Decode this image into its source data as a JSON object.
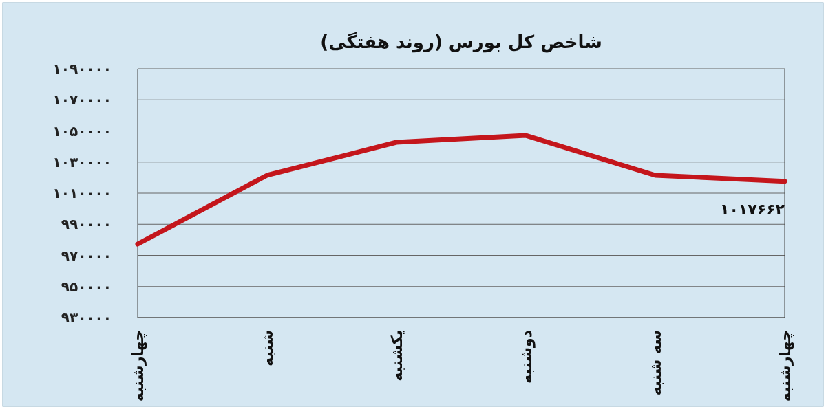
{
  "chart_data": {
    "type": "line",
    "title": "شاخص کل بورس (روند هفتگی)",
    "categories": [
      "چهارشنبه",
      "شنبه",
      "یکشنبه",
      "دوشنبه",
      "سه شنبه",
      "چهارشنبه"
    ],
    "series": [
      {
        "color": "#c4161c",
        "values": [
          977300,
          1021500,
          1042700,
          1047100,
          1021500,
          1017662
        ],
        "value_labels": [
          null,
          null,
          null,
          null,
          null,
          "۱۰۱۷۶۶۲"
        ]
      }
    ],
    "ylim": [
      930000,
      1090000
    ],
    "yticks": [
      {
        "value": 930000,
        "label": "۹۳۰۰۰۰"
      },
      {
        "value": 950000,
        "label": "۹۵۰۰۰۰"
      },
      {
        "value": 970000,
        "label": "۹۷۰۰۰۰"
      },
      {
        "value": 990000,
        "label": "۹۹۰۰۰۰"
      },
      {
        "value": 1010000,
        "label": "۱۰۱۰۰۰۰"
      },
      {
        "value": 1030000,
        "label": "۱۰۳۰۰۰۰"
      },
      {
        "value": 1050000,
        "label": "۱۰۵۰۰۰۰"
      },
      {
        "value": 1070000,
        "label": "۱۰۷۰۰۰۰"
      },
      {
        "value": 1090000,
        "label": "۱۰۹۰۰۰۰"
      }
    ],
    "grid": "y",
    "marker": "none",
    "line_style": "solid"
  }
}
